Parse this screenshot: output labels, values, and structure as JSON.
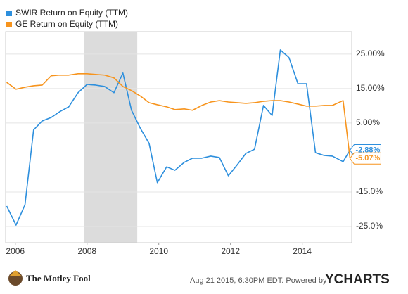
{
  "chart_data": {
    "type": "line",
    "series": [
      {
        "name": "SWIR Return on Equity (TTM)",
        "color": "#2d8fdd",
        "values": [
          -19.1,
          -24.6,
          -18.7,
          3.0,
          5.6,
          6.6,
          8.3,
          9.7,
          13.8,
          16.2,
          16.0,
          15.6,
          13.8,
          19.5,
          8.7,
          3.4,
          -0.9,
          -12.3,
          -7.7,
          -8.7,
          -6.4,
          -5.2,
          -5.2,
          -4.6,
          -5.0,
          -10.3,
          -7.2,
          -3.8,
          -2.6,
          10.1,
          7.2,
          26.2,
          24.0,
          16.4,
          16.4,
          -3.6,
          -4.4,
          -4.6,
          -6.2,
          -2.88
        ],
        "value_labels": [
          null,
          null,
          null,
          null,
          null,
          null,
          null,
          null,
          null,
          null,
          null,
          null,
          null,
          null,
          null,
          null,
          null,
          null,
          null,
          null,
          null,
          null,
          null,
          null,
          null,
          null,
          null,
          null,
          null,
          null,
          null,
          null,
          null,
          null,
          null,
          null,
          null,
          null,
          null,
          "-2.88%"
        ]
      },
      {
        "name": "GE Return on Equity (TTM)",
        "color": "#f7941d",
        "values": [
          16.8,
          14.8,
          15.4,
          15.8,
          16.0,
          18.7,
          18.9,
          18.9,
          19.3,
          19.3,
          19.1,
          18.9,
          18.1,
          15.6,
          14.4,
          12.8,
          10.9,
          10.3,
          9.7,
          8.9,
          9.1,
          8.7,
          10.1,
          11.1,
          11.5,
          11.1,
          10.9,
          10.7,
          10.9,
          11.3,
          11.5,
          11.5,
          11.1,
          10.5,
          9.9,
          9.9,
          10.1,
          10.1,
          11.5,
          -5.07
        ],
        "value_labels": [
          null,
          null,
          null,
          null,
          null,
          null,
          null,
          null,
          null,
          null,
          null,
          null,
          null,
          null,
          null,
          null,
          null,
          null,
          null,
          null,
          null,
          null,
          null,
          null,
          null,
          null,
          null,
          null,
          null,
          null,
          null,
          null,
          null,
          null,
          null,
          null,
          null,
          null,
          null,
          "-5.07%"
        ]
      }
    ],
    "x": [
      2005.76,
      2006.02,
      2006.27,
      2006.51,
      2006.75,
      2007.0,
      2007.24,
      2007.49,
      2007.75,
      2008.0,
      2008.24,
      2008.49,
      2008.75,
      2009.0,
      2009.24,
      2009.49,
      2009.73,
      2009.96,
      2010.22,
      2010.45,
      2010.71,
      2010.94,
      2011.2,
      2011.45,
      2011.69,
      2011.94,
      2012.18,
      2012.43,
      2012.67,
      2012.92,
      2013.16,
      2013.39,
      2013.63,
      2013.88,
      2014.12,
      2014.37,
      2014.61,
      2014.84,
      2015.14,
      2015.33
    ],
    "xlim": [
      2005.73,
      2015.38
    ],
    "xticks": [
      2006,
      2008,
      2010,
      2012,
      2014
    ],
    "ylim": [
      -29.7,
      31.5
    ],
    "yticks": [
      {
        "value": 25,
        "label": "25.00%"
      },
      {
        "value": 15,
        "label": "15.00%"
      },
      {
        "value": 5,
        "label": "5.00%"
      },
      {
        "value": -15,
        "label": "-15.0%"
      },
      {
        "value": -25,
        "label": "-25.0%"
      }
    ],
    "shaded_region": [
      2007.92,
      2009.4
    ],
    "grid": true,
    "legend": "top-left"
  },
  "footer": {
    "brand": "The Motley Fool",
    "timestamp": "Aug 21 2015, 6:30PM EDT.  Powered by",
    "provider": "YCHARTS"
  }
}
